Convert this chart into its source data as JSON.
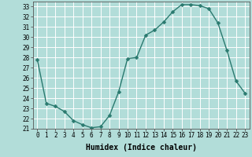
{
  "x": [
    0,
    1,
    2,
    3,
    4,
    5,
    6,
    7,
    8,
    9,
    10,
    11,
    12,
    13,
    14,
    15,
    16,
    17,
    18,
    19,
    20,
    21,
    22,
    23
  ],
  "y": [
    27.8,
    23.5,
    23.2,
    22.7,
    21.8,
    21.4,
    21.1,
    21.2,
    22.3,
    24.6,
    27.9,
    28.0,
    30.2,
    30.7,
    31.5,
    32.5,
    33.2,
    33.2,
    33.1,
    32.8,
    31.4,
    28.7,
    25.7,
    24.5
  ],
  "line_color": "#2a7a6f",
  "bg_color": "#b2ddd9",
  "grid_color": "#ffffff",
  "tick_label_color": "#000000",
  "xlabel": "Humidex (Indice chaleur)",
  "xlim": [
    -0.5,
    23.5
  ],
  "ylim": [
    21,
    33.5
  ],
  "yticks": [
    21,
    22,
    23,
    24,
    25,
    26,
    27,
    28,
    29,
    30,
    31,
    32,
    33
  ],
  "xticks": [
    0,
    1,
    2,
    3,
    4,
    5,
    6,
    7,
    8,
    9,
    10,
    11,
    12,
    13,
    14,
    15,
    16,
    17,
    18,
    19,
    20,
    21,
    22,
    23
  ],
  "marker_size": 2.5,
  "line_width": 1.0,
  "xlabel_fontsize": 7,
  "tick_fontsize": 5.5
}
